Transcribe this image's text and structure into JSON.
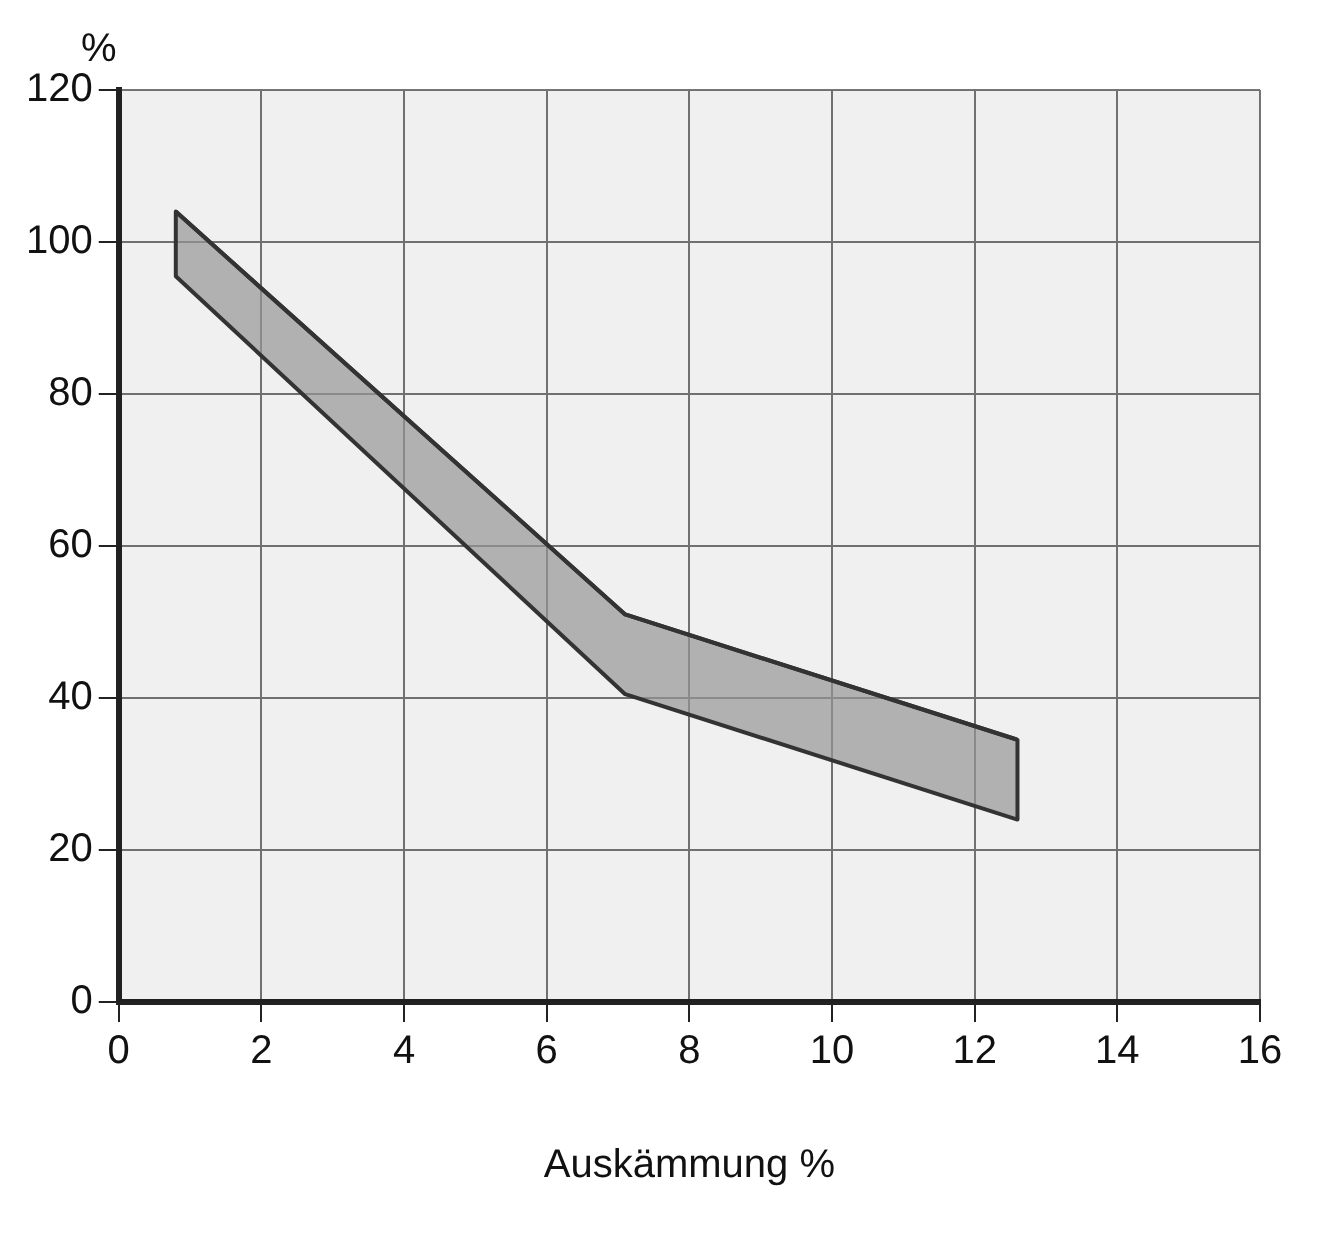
{
  "chart_data": {
    "type": "line",
    "ylabel": "%",
    "xlabel": "Auskämmung %",
    "xlim": [
      0,
      16
    ],
    "xticks": [
      0,
      2,
      4,
      6,
      8,
      10,
      12,
      14,
      16
    ],
    "ylim": [
      0,
      120
    ],
    "yticks": [
      0,
      20,
      40,
      60,
      80,
      100,
      120
    ],
    "series": [
      {
        "color": "#333333",
        "x": [
          0.8,
          7.1,
          12.6
        ],
        "values": [
          104,
          51,
          34.5
        ],
        "lower": [
          95.5,
          40.5,
          24
        ],
        "upper": [
          104,
          51,
          34.5
        ]
      }
    ],
    "grid": true,
    "legend": false,
    "marker": "none"
  }
}
